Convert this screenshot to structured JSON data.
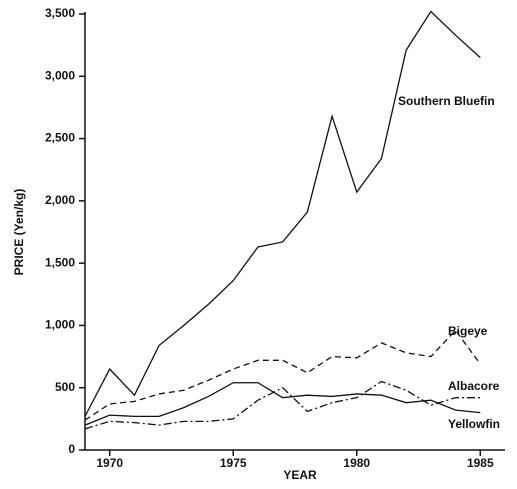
{
  "chart_data": {
    "type": "line",
    "x_label": "YEAR",
    "y_label": "PRICE (Yen/kg)",
    "x": [
      1969,
      1970,
      1971,
      1972,
      1973,
      1974,
      1975,
      1976,
      1977,
      1978,
      1979,
      1980,
      1981,
      1982,
      1983,
      1984,
      1985
    ],
    "series": [
      {
        "name": "Southern Bluefin",
        "color": "#111111",
        "dash": "none",
        "values": [
          270,
          650,
          440,
          840,
          1000,
          1170,
          1360,
          1630,
          1670,
          1910,
          2680,
          2070,
          2340,
          3210,
          3520,
          3330,
          3150
        ]
      },
      {
        "name": "Bigeye",
        "color": "#111111",
        "dash": "6 4",
        "values": [
          240,
          370,
          390,
          450,
          480,
          560,
          650,
          720,
          720,
          620,
          750,
          740,
          860,
          780,
          750,
          960,
          690
        ]
      },
      {
        "name": "Albacore",
        "color": "#111111",
        "dash": "none",
        "values": [
          200,
          280,
          270,
          270,
          340,
          430,
          540,
          540,
          420,
          440,
          430,
          450,
          440,
          380,
          400,
          320,
          300
        ]
      },
      {
        "name": "Yellowfin",
        "color": "#111111",
        "dash": "8 3 2 3",
        "values": [
          170,
          230,
          220,
          200,
          230,
          230,
          250,
          400,
          500,
          310,
          380,
          420,
          550,
          480,
          360,
          420,
          420
        ]
      }
    ],
    "xlim": [
      1969,
      1986
    ],
    "ylim": [
      0,
      3500
    ],
    "xticks": [
      1970,
      1975,
      1980,
      1985
    ],
    "yticks": [
      0,
      500,
      {
        "value": 1000,
        "label": "1,000"
      },
      {
        "value": 1500,
        "label": "1,500"
      },
      {
        "value": 2000,
        "label": "2,000"
      },
      {
        "value": 2500,
        "label": "2,500"
      },
      {
        "value": 3000,
        "label": "3,000"
      },
      {
        "value": 3500,
        "label": "3,500"
      }
    ],
    "grid": false
  }
}
